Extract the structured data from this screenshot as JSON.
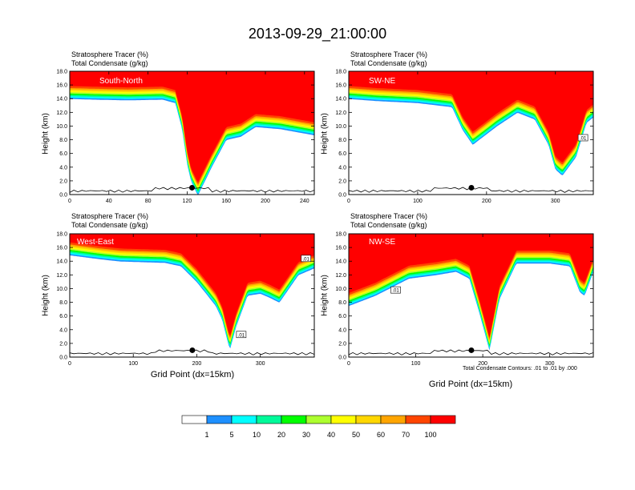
{
  "figure": {
    "title": "2013-09-29_21:00:00",
    "panel_title_line1": "Stratosphere Tracer   (%)",
    "panel_title_line2": "Total Condensate   (g/kg)",
    "y_axis_label": "Height (km)",
    "x_axis_label": "Grid Point (dx=15km)",
    "contour_note": "Total Condensate Contours: .01 to .01 by .000",
    "contour_label": ".01"
  },
  "colors": {
    "levels": [
      "#ffffff",
      "#1e90ff",
      "#00ffff",
      "#00fa9a",
      "#00ff00",
      "#adff2f",
      "#ffff00",
      "#ffd700",
      "#ffa500",
      "#ff4500",
      "#ff0000"
    ],
    "marker": "#000000"
  },
  "colorbar": {
    "labels": [
      "1",
      "5",
      "10",
      "20",
      "30",
      "40",
      "50",
      "60",
      "70",
      "100"
    ]
  },
  "chart_data": [
    {
      "type": "heatmap",
      "name": "South-North",
      "title": "Stratosphere Tracer (%) / Total Condensate (g/kg)",
      "xlabel": "",
      "ylabel": "Height (km)",
      "xlim": [
        0,
        250
      ],
      "ylim": [
        0,
        18
      ],
      "x_ticks": [
        "0",
        "40",
        "80",
        "120",
        "160",
        "200",
        "240"
      ],
      "y_ticks": [
        "0.0",
        "2.0",
        "4.0",
        "6.0",
        "8.0",
        "10.0",
        "12.0",
        "14.0",
        "16.0",
        "18.0"
      ],
      "tropopause_km": [
        [
          0,
          14.5
        ],
        [
          25,
          14.4
        ],
        [
          60,
          14.3
        ],
        [
          95,
          14.4
        ],
        [
          108,
          13.9
        ],
        [
          115,
          10
        ],
        [
          120,
          5
        ],
        [
          124,
          2.5
        ],
        [
          131,
          0.4
        ],
        [
          145,
          4.5
        ],
        [
          160,
          8.5
        ],
        [
          175,
          9
        ],
        [
          190,
          10.4
        ],
        [
          215,
          10.1
        ],
        [
          250,
          9.2
        ]
      ],
      "marker_point": [
        125,
        1.0
      ],
      "contour_labels": []
    },
    {
      "type": "heatmap",
      "name": "SW-NE",
      "title": "Stratosphere Tracer (%) / Total Condensate (g/kg)",
      "xlabel": "",
      "ylabel": "Height (km)",
      "xlim": [
        0,
        355
      ],
      "ylim": [
        0,
        18
      ],
      "x_ticks": [
        "0",
        "100",
        "200",
        "300"
      ],
      "y_ticks": [
        "0.0",
        "2.0",
        "4.0",
        "6.0",
        "8.0",
        "10.0",
        "12.0",
        "14.0",
        "16.0",
        "18.0"
      ],
      "tropopause_km": [
        [
          0,
          14.5
        ],
        [
          40,
          14.2
        ],
        [
          100,
          13.9
        ],
        [
          150,
          13.3
        ],
        [
          165,
          10
        ],
        [
          180,
          7.8
        ],
        [
          215,
          10.5
        ],
        [
          245,
          12.5
        ],
        [
          270,
          11.5
        ],
        [
          290,
          7.8
        ],
        [
          300,
          4.2
        ],
        [
          310,
          3.3
        ],
        [
          330,
          6
        ],
        [
          345,
          11
        ],
        [
          355,
          11.8
        ]
      ],
      "marker_point": [
        178,
        1.0
      ],
      "contour_labels": [
        [
          340,
          8.3
        ]
      ]
    },
    {
      "type": "heatmap",
      "name": "West-East",
      "title": "Stratosphere Tracer (%) / Total Condensate (g/kg)",
      "xlabel": "Grid Point (dx=15km)",
      "ylabel": "Height (km)",
      "xlim": [
        0,
        385
      ],
      "ylim": [
        0,
        18
      ],
      "x_ticks": [
        "0",
        "100",
        "200",
        "300"
      ],
      "y_ticks": [
        "0.0",
        "2.0",
        "4.0",
        "6.0",
        "8.0",
        "10.0",
        "12.0",
        "14.0",
        "16.0",
        "18.0"
      ],
      "tropopause_km": [
        [
          0,
          15.4
        ],
        [
          50,
          14.8
        ],
        [
          80,
          14.5
        ],
        [
          150,
          14.3
        ],
        [
          175,
          13.8
        ],
        [
          200,
          11.5
        ],
        [
          230,
          8
        ],
        [
          240,
          6
        ],
        [
          252,
          1.6
        ],
        [
          262,
          5
        ],
        [
          280,
          9.5
        ],
        [
          300,
          9.8
        ],
        [
          315,
          9.2
        ],
        [
          330,
          8.5
        ],
        [
          360,
          12.5
        ],
        [
          385,
          13.5
        ]
      ],
      "marker_point": [
        193,
        1.0
      ],
      "contour_labels": [
        [
          270,
          3.3
        ],
        [
          372,
          14.4
        ]
      ]
    },
    {
      "type": "heatmap",
      "name": "NW-SE",
      "title": "Stratosphere Tracer (%) / Total Condensate (g/kg)",
      "xlabel": "Grid Point (dx=15km)",
      "ylabel": "Height (km)",
      "xlim": [
        0,
        365
      ],
      "ylim": [
        0,
        18
      ],
      "x_ticks": [
        "0",
        "100",
        "200",
        "300"
      ],
      "y_ticks": [
        "0.0",
        "2.0",
        "4.0",
        "6.0",
        "8.0",
        "10.0",
        "12.0",
        "14.0",
        "16.0",
        "18.0"
      ],
      "tropopause_km": [
        [
          0,
          8
        ],
        [
          40,
          9.5
        ],
        [
          90,
          12
        ],
        [
          130,
          12.5
        ],
        [
          160,
          13
        ],
        [
          180,
          12
        ],
        [
          195,
          7
        ],
        [
          210,
          1.5
        ],
        [
          225,
          9
        ],
        [
          250,
          14.2
        ],
        [
          300,
          14.2
        ],
        [
          330,
          13.8
        ],
        [
          345,
          10
        ],
        [
          352,
          9.5
        ],
        [
          365,
          13
        ]
      ],
      "marker_point": [
        183,
        1.0
      ],
      "contour_labels": [
        [
          70,
          9.8
        ]
      ]
    }
  ]
}
